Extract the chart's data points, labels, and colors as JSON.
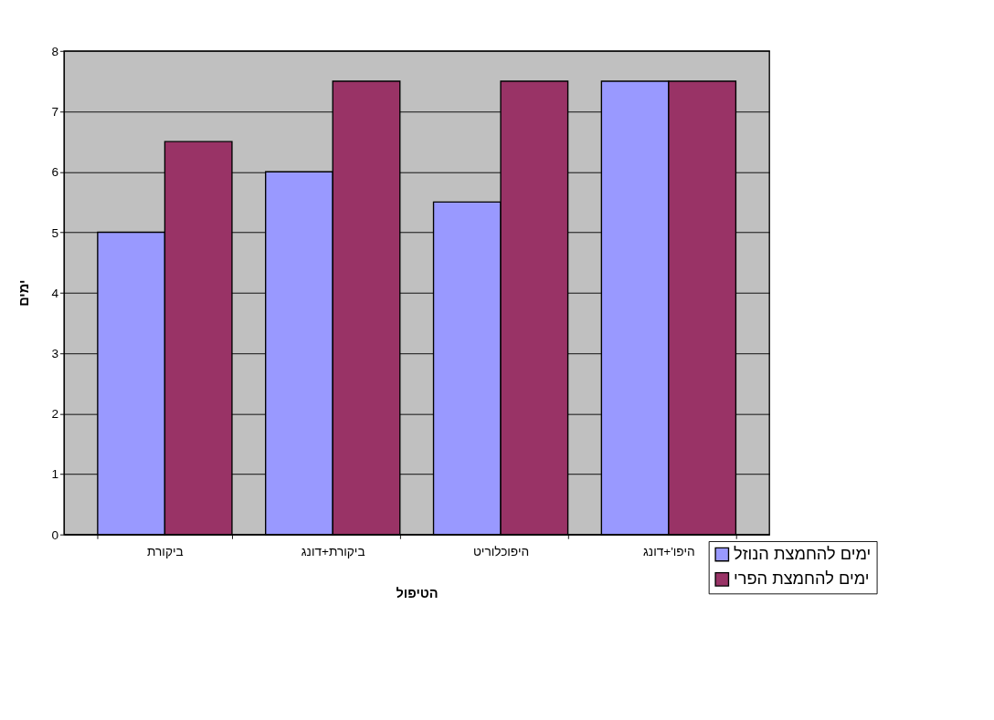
{
  "chart_data": {
    "type": "bar",
    "xlabel": "הטיפול",
    "ylabel": "ימים",
    "categories": [
      "ביקורת",
      "ביקורת+דונג",
      "היפוכלוריט",
      "היפו'+דונג"
    ],
    "series": [
      {
        "name": "ימים להחמצת הנוזל",
        "color": "#9999ff",
        "values": [
          5,
          6,
          5.5,
          7.5
        ]
      },
      {
        "name": "ימים להחמצת הפרי",
        "color": "#993366",
        "values": [
          6.5,
          7.5,
          7.5,
          7.5
        ]
      }
    ],
    "ylim": [
      0,
      8
    ],
    "yticks": [
      0,
      1,
      2,
      3,
      4,
      5,
      6,
      7,
      8
    ],
    "grid": "y",
    "legend": "bottom right"
  }
}
